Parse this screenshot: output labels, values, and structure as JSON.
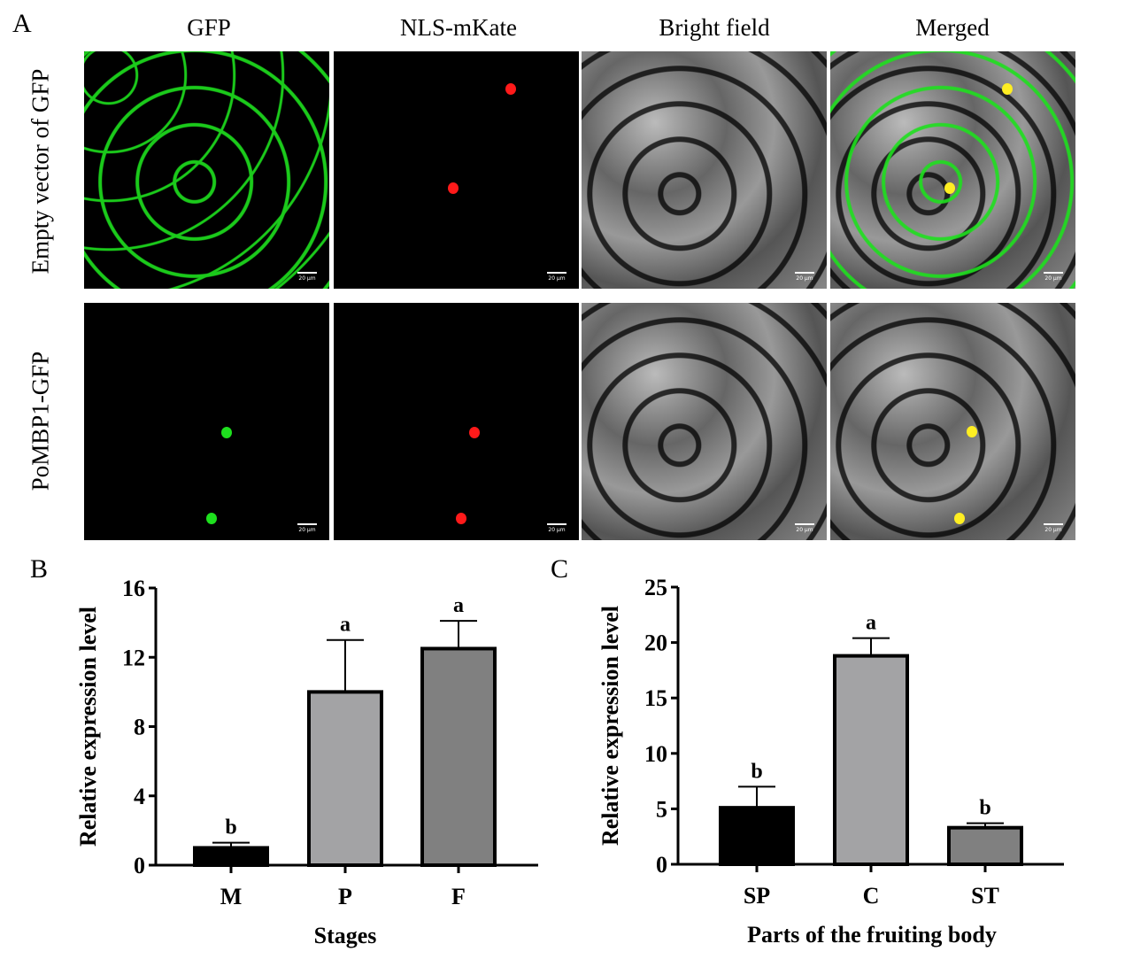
{
  "panel_a": {
    "letter": "A",
    "columns": [
      "GFP",
      "NLS-mKate",
      "Bright field",
      "Merged"
    ],
    "rows": [
      "Empty vector of GFP",
      "PoMBP1-GFP"
    ],
    "scale_bar": "20 μm"
  },
  "chart_data": [
    {
      "panel": "B",
      "type": "bar",
      "categories": [
        "M",
        "P",
        "F"
      ],
      "values": [
        1.0,
        10.0,
        12.5
      ],
      "error_upper": [
        1.3,
        13.0,
        14.1
      ],
      "significance": [
        "b",
        "a",
        "a"
      ],
      "bar_colors": [
        "#000000",
        "#a3a3a5",
        "#808080"
      ],
      "xlabel": "Stages",
      "ylabel": "Relative expression level",
      "ylim": [
        0,
        16
      ],
      "yticks": [
        "0",
        "4",
        "8",
        "12",
        "16"
      ],
      "grid": false
    },
    {
      "panel": "C",
      "type": "bar",
      "categories": [
        "SP",
        "C",
        "ST"
      ],
      "values": [
        5.1,
        18.8,
        3.3
      ],
      "error_upper": [
        7.0,
        20.4,
        3.7
      ],
      "significance": [
        "b",
        "a",
        "b"
      ],
      "bar_colors": [
        "#000000",
        "#a3a3a5",
        "#808080"
      ],
      "xlabel": "Parts of the fruiting body",
      "ylabel": "Relative expression level",
      "ylim": [
        0,
        25
      ],
      "yticks": [
        "0",
        "5",
        "10",
        "15",
        "20",
        "25"
      ],
      "grid": false
    }
  ],
  "colors": {
    "gfp": "#1ee01e",
    "mkate": "#ff1a1a",
    "merged_nucleus": "#ffee22"
  }
}
